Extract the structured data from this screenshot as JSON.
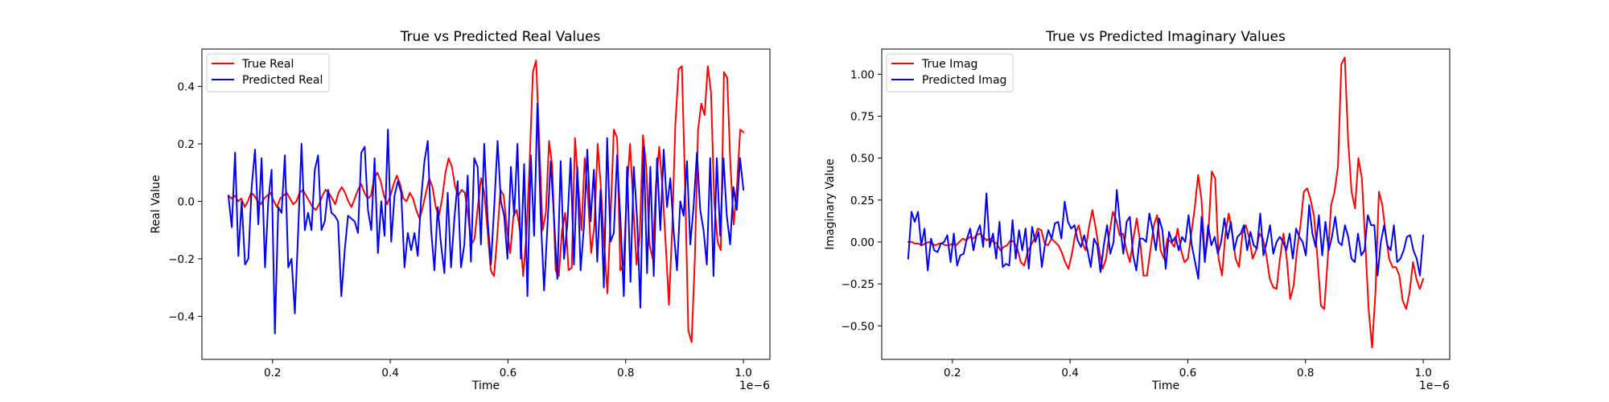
{
  "chart_data": [
    {
      "type": "line",
      "title": "True vs Predicted Real Values",
      "xlabel": "Time",
      "ylabel": "Real Value",
      "x_offset_label": "1e−6",
      "xlim": [
        0.08,
        1.045
      ],
      "ylim": [
        -0.55,
        0.53
      ],
      "xticks": [
        0.2,
        0.4,
        0.6,
        0.8,
        1.0
      ],
      "xtick_labels": [
        "0.2",
        "0.4",
        "0.6",
        "0.8",
        "1.0"
      ],
      "yticks": [
        -0.4,
        -0.2,
        0.0,
        0.2,
        0.4
      ],
      "ytick_labels": [
        "−0.4",
        "−0.2",
        "0.0",
        "0.2",
        "0.4"
      ],
      "grid": false,
      "legend_position": "upper-left",
      "x_start": 0.125,
      "x_end": 1.0,
      "series": [
        {
          "name": "True Real",
          "color": "#ff0000",
          "values": [
            0.02,
            0.01,
            0.02,
            0.0,
            0.01,
            -0.02,
            0.0,
            0.03,
            0.02,
            0.0,
            -0.01,
            0.01,
            0.02,
            0.03,
            0.0,
            -0.02,
            0.01,
            0.02,
            0.03,
            0.01,
            -0.01,
            0.0,
            0.03,
            0.04,
            0.02,
            0.0,
            -0.02,
            -0.03,
            -0.01,
            0.02,
            0.04,
            0.03,
            0.01,
            -0.01,
            0.03,
            0.05,
            0.03,
            0.0,
            -0.02,
            0.01,
            0.04,
            0.06,
            0.03,
            0.01,
            0.02,
            0.08,
            0.1,
            0.07,
            0.02,
            -0.01,
            0.02,
            0.06,
            0.09,
            0.06,
            0.01,
            0.0,
            0.03,
            0.01,
            -0.03,
            -0.06,
            -0.02,
            0.03,
            0.08,
            0.05,
            -0.02,
            -0.05,
            0.01,
            0.1,
            0.15,
            0.12,
            0.05,
            0.02,
            0.04,
            0.03,
            -0.05,
            -0.15,
            -0.13,
            -0.02,
            0.08,
            0.03,
            -0.1,
            -0.24,
            -0.26,
            -0.12,
            0.04,
            0.02,
            -0.1,
            -0.18,
            -0.05,
            -0.03,
            -0.1,
            -0.26,
            -0.12,
            0.14,
            0.45,
            0.49,
            0.2,
            -0.1,
            -0.04,
            0.21,
            0.12,
            -0.24,
            -0.26,
            -0.1,
            -0.04,
            -0.24,
            -0.23,
            0.22,
            0.06,
            -0.1,
            0.15,
            0.02,
            -0.18,
            -0.08,
            0.2,
            0.05,
            -0.15,
            -0.32,
            -0.05,
            0.25,
            0.22,
            -0.24,
            -0.22,
            0.03,
            0.2,
            -0.02,
            -0.22,
            -0.12,
            0.23,
            0.12,
            -0.15,
            -0.2,
            0.06,
            0.19,
            0.05,
            -0.15,
            -0.36,
            -0.1,
            0.27,
            0.46,
            0.47,
            0.05,
            -0.45,
            -0.49,
            -0.2,
            0.25,
            0.34,
            0.3,
            0.47,
            0.38,
            0.0,
            -0.14,
            -0.17,
            0.45,
            0.43,
            0.12,
            -0.08,
            0.05,
            0.25,
            0.24
          ]
        },
        {
          "name": "Predicted Real",
          "color": "#0000ff",
          "values": [
            0.02,
            -0.09,
            0.17,
            -0.19,
            0.0,
            -0.22,
            -0.2,
            0.05,
            0.18,
            -0.08,
            0.15,
            -0.23,
            0.0,
            0.11,
            -0.46,
            -0.02,
            -0.04,
            0.16,
            -0.23,
            -0.2,
            -0.39,
            -0.1,
            0.2,
            -0.1,
            -0.04,
            -0.1,
            0.11,
            0.16,
            -0.1,
            -0.07,
            0.04,
            -0.04,
            -0.05,
            -0.07,
            -0.33,
            -0.17,
            -0.05,
            -0.06,
            -0.07,
            -0.11,
            0.17,
            0.19,
            -0.03,
            -0.1,
            0.15,
            -0.18,
            0.0,
            -0.12,
            0.25,
            -0.14,
            0.02,
            0.07,
            0.03,
            -0.23,
            -0.11,
            -0.17,
            -0.11,
            -0.19,
            0.01,
            0.14,
            0.21,
            -0.1,
            -0.24,
            -0.02,
            -0.15,
            -0.25,
            0.03,
            -0.23,
            -0.06,
            0.07,
            -0.23,
            -0.15,
            0.09,
            -0.21,
            0.15,
            0.12,
            -0.15,
            0.2,
            -0.06,
            -0.22,
            -0.02,
            0.21,
            0.0,
            -0.05,
            -0.2,
            0.12,
            -0.05,
            0.2,
            -0.2,
            0.13,
            -0.33,
            0.16,
            -0.12,
            0.34,
            -0.05,
            -0.31,
            -0.09,
            0.14,
            -0.06,
            -0.27,
            0.14,
            -0.2,
            -0.08,
            0.15,
            -0.22,
            0.12,
            -0.24,
            -0.09,
            0.18,
            -0.07,
            0.11,
            -0.21,
            0.04,
            -0.3,
            0.22,
            -0.14,
            -0.11,
            0.16,
            -0.07,
            -0.33,
            0.12,
            -0.28,
            0.12,
            -0.06,
            -0.37,
            0.19,
            -0.25,
            0.12,
            -0.26,
            0.15,
            -0.1,
            0.18,
            -0.02,
            0.08,
            -0.1,
            -0.24,
            0.0,
            -0.05,
            0.14,
            -0.15,
            -0.02,
            0.17,
            -0.03,
            -0.1,
            -0.22,
            0.15,
            -0.26,
            0.15,
            -0.12,
            0.15,
            -0.05,
            -0.15,
            0.05,
            -0.03,
            0.15,
            0.04
          ]
        }
      ]
    },
    {
      "type": "line",
      "title": "True vs Predicted Imaginary Values",
      "xlabel": "Time",
      "ylabel": "Imaginary Value",
      "x_offset_label": "1e−6",
      "xlim": [
        0.08,
        1.045
      ],
      "ylim": [
        -0.7,
        1.15
      ],
      "xticks": [
        0.2,
        0.4,
        0.6,
        0.8,
        1.0
      ],
      "xtick_labels": [
        "0.2",
        "0.4",
        "0.6",
        "0.8",
        "1.0"
      ],
      "yticks": [
        -0.5,
        -0.25,
        0.0,
        0.25,
        0.5,
        0.75,
        1.0
      ],
      "ytick_labels": [
        "−0.50",
        "−0.25",
        "0.00",
        "0.25",
        "0.50",
        "0.75",
        "1.00"
      ],
      "grid": false,
      "legend_position": "upper-left",
      "x_start": 0.125,
      "x_end": 1.0,
      "series": [
        {
          "name": "True Imag",
          "color": "#ff0000",
          "values": [
            0.0,
            0.0,
            -0.01,
            -0.01,
            -0.02,
            -0.01,
            0.0,
            -0.01,
            -0.02,
            -0.01,
            -0.01,
            -0.02,
            -0.02,
            -0.01,
            -0.02,
            0.0,
            0.02,
            0.01,
            0.03,
            0.02,
            0.04,
            0.05,
            0.03,
            0.01,
            0.02,
            0.0,
            -0.01,
            -0.05,
            -0.03,
            -0.02,
            0.01,
            0.0,
            -0.04,
            -0.12,
            -0.14,
            -0.06,
            -0.02,
            0.02,
            0.08,
            0.07,
            -0.01,
            -0.02,
            0.02,
            0.0,
            -0.02,
            -0.06,
            -0.12,
            -0.16,
            -0.07,
            0.05,
            0.1,
            0.0,
            -0.05,
            0.09,
            0.19,
            0.08,
            -0.05,
            -0.16,
            -0.1,
            0.05,
            0.18,
            0.13,
            0.04,
            0.05,
            -0.05,
            -0.12,
            0.02,
            0.14,
            0.0,
            -0.2,
            -0.2,
            -0.05,
            0.1,
            0.16,
            -0.05,
            -0.1,
            0.02,
            0.0,
            -0.03,
            0.08,
            -0.05,
            -0.12,
            -0.1,
            0.05,
            0.2,
            0.4,
            0.25,
            -0.1,
            0.05,
            0.42,
            0.38,
            -0.1,
            -0.2,
            0.05,
            0.17,
            0.05,
            -0.1,
            -0.15,
            0.05,
            0.1,
            0.02,
            -0.1,
            -0.05,
            0.05,
            0.02,
            -0.08,
            -0.22,
            -0.27,
            -0.28,
            -0.1,
            0.05,
            -0.1,
            -0.34,
            -0.26,
            -0.05,
            0.1,
            0.3,
            0.32,
            0.25,
            0.15,
            -0.1,
            -0.38,
            -0.4,
            -0.1,
            0.22,
            0.3,
            0.45,
            1.06,
            1.1,
            0.6,
            0.3,
            0.2,
            0.5,
            0.38,
            0.0,
            -0.4,
            -0.63,
            -0.3,
            0.3,
            0.22,
            0.05,
            -0.1,
            -0.15,
            -0.15,
            -0.2,
            -0.35,
            -0.4,
            -0.3,
            -0.12,
            -0.22,
            -0.28,
            -0.22
          ]
        },
        {
          "name": "Predicted Imag",
          "color": "#0000ff",
          "values": [
            -0.1,
            0.18,
            0.12,
            0.18,
            -0.02,
            0.08,
            -0.17,
            0.02,
            -0.05,
            -0.06,
            -0.01,
            0.0,
            0.04,
            -0.12,
            0.05,
            -0.14,
            -0.08,
            -0.07,
            0.02,
            0.08,
            -0.05,
            0.05,
            0.1,
            -0.03,
            0.29,
            -0.03,
            0.05,
            -0.1,
            0.12,
            -0.15,
            -0.13,
            -0.14,
            0.13,
            -0.1,
            0.07,
            -0.05,
            0.08,
            -0.16,
            0.09,
            0.0,
            0.06,
            -0.15,
            -0.01,
            0.07,
            0.02,
            0.11,
            0.12,
            0.02,
            0.24,
            0.12,
            0.08,
            0.1,
            0.01,
            -0.03,
            0.04,
            -0.05,
            -0.15,
            0.02,
            -0.02,
            -0.18,
            -0.02,
            0.1,
            -0.07,
            0.0,
            0.31,
            0.1,
            -0.07,
            0.12,
            0.15,
            -0.08,
            -0.17,
            0.02,
            0.02,
            0.0,
            0.17,
            0.07,
            -0.05,
            0.14,
            0.07,
            -0.16,
            0.06,
            0.0,
            0.03,
            -0.05,
            0.03,
            0.0,
            0.16,
            -0.02,
            -0.12,
            -0.22,
            0.15,
            -0.12,
            0.1,
            -0.02,
            0.03,
            -0.07,
            0.0,
            0.14,
            0.02,
            0.12,
            -0.05,
            0.03,
            0.05,
            0.1,
            -0.05,
            0.06,
            -0.02,
            -0.04,
            0.17,
            -0.08,
            0.0,
            0.1,
            -0.07,
            0.0,
            0.03,
            0.0,
            -0.05,
            0.05,
            -0.1,
            0.08,
            0.03,
            0.0,
            -0.08,
            0.22,
            0.05,
            -0.03,
            0.16,
            -0.08,
            0.12,
            -0.05,
            0.03,
            0.15,
            0.0,
            -0.02,
            0.1,
            0.03,
            -0.1,
            -0.12,
            0.05,
            -0.08,
            -0.05,
            0.16,
            0.1,
            0.1,
            -0.2,
            0.0,
            0.1,
            -0.02,
            -0.05,
            0.1,
            -0.12,
            -0.1,
            -0.05,
            0.03,
            0.04,
            -0.05,
            -0.1,
            -0.2,
            0.04
          ]
        }
      ]
    }
  ]
}
